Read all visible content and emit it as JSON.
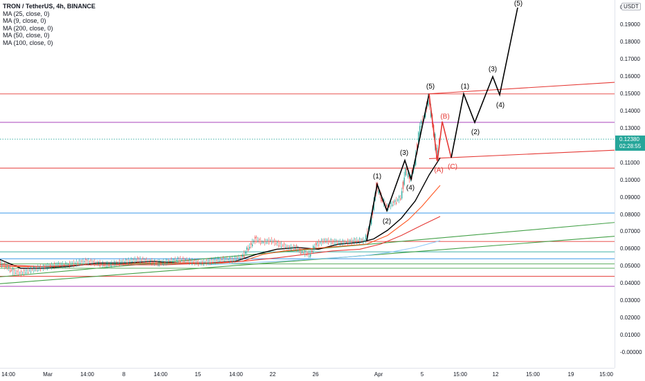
{
  "header": {
    "title": "TRON / TetherUS, 4h, BINANCE",
    "indicators": [
      "MA (25, close, 0)",
      "MA (9, close, 0)",
      "MA (200, close, 0)",
      "MA (50, close, 0)",
      "MA (100, close, 0)"
    ]
  },
  "price_axis": {
    "currency": "USDT",
    "ticks": [
      "0.20000",
      "0.19000",
      "0.18000",
      "0.17000",
      "0.16000",
      "0.15000",
      "0.14000",
      "0.13000",
      "0.12000",
      "0.11000",
      "0.10000",
      "0.09000",
      "0.08000",
      "0.07000",
      "0.06000",
      "0.05000",
      "0.04000",
      "0.03000",
      "0.02000",
      "0.01000",
      "-0.00000"
    ],
    "last_price": "0.12380",
    "countdown": "02:28:55"
  },
  "time_axis": {
    "ticks": [
      "14:00",
      "Mar",
      "14:00",
      "8",
      "14:00",
      "15",
      "14:00",
      "22",
      "26",
      "Apr",
      "5",
      "15:00",
      "12",
      "15:00",
      "19",
      "15:00"
    ]
  },
  "colors": {
    "up": "#26a69a",
    "down": "#ef5350",
    "wave": "#000000",
    "correction": "#e53935",
    "ma_black": "#000000",
    "ma_orange": "#ff5722",
    "ma_red": "#e53935",
    "ma_blue": "#90caf9",
    "ma_purple": "#9c27b0",
    "trend_green": "#43a047"
  },
  "chart_data": {
    "type": "line",
    "title": "TRON / TetherUS, 4h, BINANCE",
    "xlabel": "",
    "ylabel": "",
    "ylim": [
      -0.005,
      0.2
    ],
    "y_unit": "USDT",
    "grid": false,
    "x_ticks": [
      "14:00",
      "Mar",
      "14:00",
      "8",
      "14:00",
      "15",
      "14:00",
      "22",
      "26",
      "Apr",
      "5",
      "15:00",
      "12",
      "15:00",
      "19",
      "15:00"
    ],
    "last_price": 0.1238,
    "price_path": [
      {
        "x": 0,
        "y": 0.052
      },
      {
        "x": 10,
        "y": 0.05
      },
      {
        "x": 20,
        "y": 0.047
      },
      {
        "x": 32,
        "y": 0.046
      },
      {
        "x": 44,
        "y": 0.048
      },
      {
        "x": 56,
        "y": 0.049
      },
      {
        "x": 70,
        "y": 0.05
      },
      {
        "x": 84,
        "y": 0.051
      },
      {
        "x": 98,
        "y": 0.051
      },
      {
        "x": 110,
        "y": 0.052
      },
      {
        "x": 125,
        "y": 0.053
      },
      {
        "x": 140,
        "y": 0.052
      },
      {
        "x": 155,
        "y": 0.051
      },
      {
        "x": 170,
        "y": 0.052
      },
      {
        "x": 185,
        "y": 0.053
      },
      {
        "x": 200,
        "y": 0.054
      },
      {
        "x": 215,
        "y": 0.053
      },
      {
        "x": 230,
        "y": 0.052
      },
      {
        "x": 245,
        "y": 0.053
      },
      {
        "x": 260,
        "y": 0.054
      },
      {
        "x": 275,
        "y": 0.053
      },
      {
        "x": 290,
        "y": 0.052
      },
      {
        "x": 305,
        "y": 0.053
      },
      {
        "x": 320,
        "y": 0.054
      },
      {
        "x": 335,
        "y": 0.054
      },
      {
        "x": 350,
        "y": 0.055
      },
      {
        "x": 360,
        "y": 0.061
      },
      {
        "x": 370,
        "y": 0.066
      },
      {
        "x": 380,
        "y": 0.064
      },
      {
        "x": 392,
        "y": 0.065
      },
      {
        "x": 404,
        "y": 0.063
      },
      {
        "x": 416,
        "y": 0.061
      },
      {
        "x": 428,
        "y": 0.061
      },
      {
        "x": 438,
        "y": 0.058
      },
      {
        "x": 448,
        "y": 0.057
      },
      {
        "x": 458,
        "y": 0.063
      },
      {
        "x": 470,
        "y": 0.065
      },
      {
        "x": 485,
        "y": 0.064
      },
      {
        "x": 500,
        "y": 0.064
      },
      {
        "x": 515,
        "y": 0.065
      },
      {
        "x": 528,
        "y": 0.065
      },
      {
        "x": 536,
        "y": 0.075
      },
      {
        "x": 545,
        "y": 0.097
      },
      {
        "x": 552,
        "y": 0.089
      },
      {
        "x": 560,
        "y": 0.084
      },
      {
        "x": 570,
        "y": 0.087
      },
      {
        "x": 580,
        "y": 0.09
      },
      {
        "x": 587,
        "y": 0.107
      },
      {
        "x": 593,
        "y": 0.1
      },
      {
        "x": 600,
        "y": 0.11
      },
      {
        "x": 608,
        "y": 0.132
      },
      {
        "x": 614,
        "y": 0.137
      },
      {
        "x": 620,
        "y": 0.148
      },
      {
        "x": 626,
        "y": 0.132
      },
      {
        "x": 632,
        "y": 0.113
      },
      {
        "x": 636,
        "y": 0.1238
      }
    ],
    "moving_averages": [
      {
        "name": "MA (9, close, 0)",
        "color": "#000000",
        "points": [
          [
            0,
            0.054
          ],
          [
            30,
            0.049
          ],
          [
            60,
            0.049
          ],
          [
            100,
            0.05
          ],
          [
            140,
            0.052
          ],
          [
            180,
            0.052
          ],
          [
            220,
            0.053
          ],
          [
            260,
            0.052
          ],
          [
            300,
            0.052
          ],
          [
            340,
            0.053
          ],
          [
            370,
            0.057
          ],
          [
            400,
            0.06
          ],
          [
            430,
            0.061
          ],
          [
            460,
            0.06
          ],
          [
            490,
            0.063
          ],
          [
            520,
            0.064
          ],
          [
            540,
            0.066
          ],
          [
            560,
            0.071
          ],
          [
            580,
            0.078
          ],
          [
            600,
            0.088
          ],
          [
            620,
            0.103
          ],
          [
            636,
            0.113
          ]
        ]
      },
      {
        "name": "MA (25, close, 0)",
        "color": "#ff5722",
        "points": [
          [
            0,
            0.05
          ],
          [
            40,
            0.05
          ],
          [
            80,
            0.05
          ],
          [
            120,
            0.051
          ],
          [
            160,
            0.051
          ],
          [
            200,
            0.052
          ],
          [
            240,
            0.052
          ],
          [
            280,
            0.052
          ],
          [
            320,
            0.052
          ],
          [
            350,
            0.053
          ],
          [
            380,
            0.057
          ],
          [
            410,
            0.059
          ],
          [
            440,
            0.06
          ],
          [
            470,
            0.061
          ],
          [
            500,
            0.062
          ],
          [
            530,
            0.063
          ],
          [
            560,
            0.068
          ],
          [
            590,
            0.077
          ],
          [
            610,
            0.085
          ],
          [
            625,
            0.092
          ],
          [
            636,
            0.097
          ]
        ]
      },
      {
        "name": "MA (50, close, 0)",
        "color": "#e53935",
        "points": [
          [
            0,
            0.051
          ],
          [
            60,
            0.05
          ],
          [
            120,
            0.051
          ],
          [
            180,
            0.051
          ],
          [
            240,
            0.051
          ],
          [
            300,
            0.052
          ],
          [
            350,
            0.053
          ],
          [
            400,
            0.055
          ],
          [
            440,
            0.057
          ],
          [
            480,
            0.059
          ],
          [
            520,
            0.06
          ],
          [
            550,
            0.063
          ],
          [
            580,
            0.068
          ],
          [
            610,
            0.074
          ],
          [
            636,
            0.079
          ]
        ]
      },
      {
        "name": "MA (100, close, 0)",
        "color": "#90caf9",
        "points": [
          [
            300,
            0.051
          ],
          [
            350,
            0.052
          ],
          [
            400,
            0.053
          ],
          [
            440,
            0.054
          ],
          [
            480,
            0.055
          ],
          [
            520,
            0.056
          ],
          [
            560,
            0.058
          ],
          [
            600,
            0.061
          ],
          [
            636,
            0.065
          ]
        ]
      }
    ],
    "horizontal_levels": [
      {
        "y": 0.15,
        "color": "#e53935"
      },
      {
        "y": 0.1335,
        "color": "#9c27b0"
      },
      {
        "y": 0.1238,
        "color": "#26a69a",
        "style": "dotted"
      },
      {
        "y": 0.107,
        "color": "#e53935"
      },
      {
        "y": 0.081,
        "color": "#1e88e5"
      },
      {
        "y": 0.0645,
        "color": "#e53935"
      },
      {
        "y": 0.0585,
        "color": "#26a69a"
      },
      {
        "y": 0.0545,
        "color": "#1e88e5"
      },
      {
        "y": 0.0515,
        "color": "#43a047"
      },
      {
        "y": 0.049,
        "color": "#43a047"
      },
      {
        "y": 0.0443,
        "color": "#e53935"
      },
      {
        "y": 0.0385,
        "color": "#9c27b0"
      }
    ],
    "trend_lines": [
      {
        "x1": 0,
        "y1": 0.044,
        "x2": 888,
        "y2": 0.0755,
        "color": "#43a047"
      },
      {
        "x1": 0,
        "y1": 0.04,
        "x2": 888,
        "y2": 0.0675,
        "color": "#43a047"
      },
      {
        "x1": 618,
        "y1": 0.15,
        "x2": 888,
        "y2": 0.1567,
        "color": "#e53935"
      },
      {
        "x1": 620,
        "y1": 0.1125,
        "x2": 888,
        "y2": 0.1174,
        "color": "#e53935"
      }
    ],
    "impulse_wave": {
      "points": [
        [
          530,
          0.065
        ],
        [
          545,
          0.0975
        ],
        [
          559,
          0.0823
        ],
        [
          585,
          0.1115
        ],
        [
          594,
          0.1005
        ],
        [
          620,
          0.15
        ]
      ],
      "labels": [
        {
          "text": "(1)",
          "x": 545,
          "y": 0.0975
        },
        {
          "text": "(2)",
          "x": 559,
          "y": 0.0823
        },
        {
          "text": "(3)",
          "x": 585,
          "y": 0.1115
        },
        {
          "text": "(4)",
          "x": 594,
          "y": 0.1005
        },
        {
          "text": "(5)",
          "x": 620,
          "y": 0.15
        }
      ]
    },
    "correction_wave": {
      "points": [
        [
          620,
          0.15
        ],
        [
          632,
          0.111
        ],
        [
          639,
          0.134
        ],
        [
          652,
          0.113
        ]
      ],
      "labels": [
        {
          "text": "(A)",
          "x": 632,
          "y": 0.111
        },
        {
          "text": "(B)",
          "x": 639,
          "y": 0.134
        },
        {
          "text": "(C)",
          "x": 652,
          "y": 0.113
        }
      ]
    },
    "projected_wave": {
      "points": [
        [
          652,
          0.113
        ],
        [
          670,
          0.15
        ],
        [
          686,
          0.1335
        ],
        [
          712,
          0.16
        ],
        [
          722,
          0.1495
        ],
        [
          748,
          0.2
        ]
      ],
      "labels": [
        {
          "text": "(1)",
          "x": 670,
          "y": 0.15
        },
        {
          "text": "(2)",
          "x": 686,
          "y": 0.1335
        },
        {
          "text": "(3)",
          "x": 712,
          "y": 0.16
        },
        {
          "text": "(4)",
          "x": 722,
          "y": 0.1495
        },
        {
          "text": "(5)",
          "x": 748,
          "y": 0.2
        }
      ]
    }
  }
}
